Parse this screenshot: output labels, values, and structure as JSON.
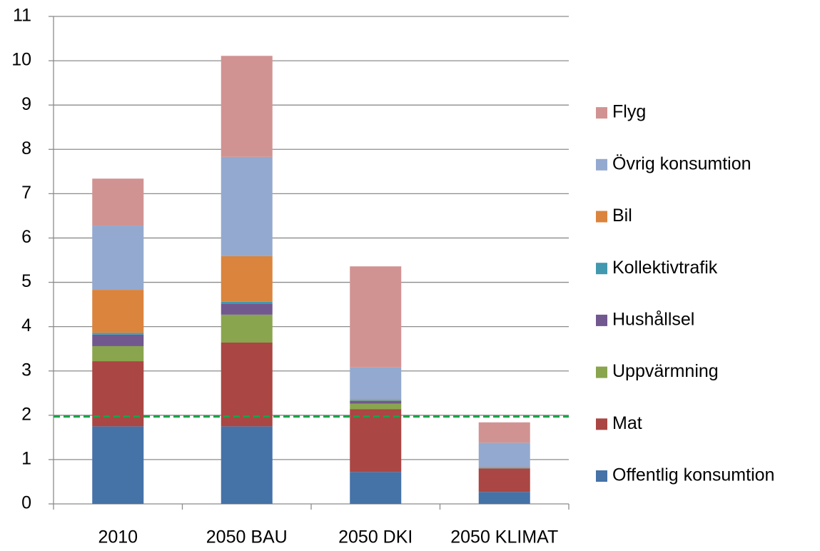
{
  "chart_data": {
    "type": "stacked_bar",
    "categories": [
      "2010",
      "2050 BAU",
      "2050 DKI",
      "2050 KLIMAT"
    ],
    "series": [
      {
        "name": "Offentlig konsumtion",
        "color": "#4572a7",
        "values": [
          1.75,
          1.75,
          0.72,
          0.27
        ]
      },
      {
        "name": "Mat",
        "color": "#aa4643",
        "values": [
          1.47,
          1.89,
          1.42,
          0.53
        ]
      },
      {
        "name": "Uppvärmning",
        "color": "#89a54e",
        "values": [
          0.34,
          0.63,
          0.12,
          0
        ]
      },
      {
        "name": "Hushållsel",
        "color": "#71588f",
        "values": [
          0.26,
          0.25,
          0.06,
          0
        ]
      },
      {
        "name": "Kollektivtrafik",
        "color": "#4198af",
        "values": [
          0.04,
          0.04,
          0.02,
          0.01
        ]
      },
      {
        "name": "Bil",
        "color": "#db843d",
        "values": [
          0.97,
          1.03,
          0.02,
          0.02
        ]
      },
      {
        "name": "Övrig konsumtion",
        "color": "#93a9cf",
        "values": [
          1.45,
          2.24,
          0.72,
          0.55
        ]
      },
      {
        "name": "Flyg",
        "color": "#d19392",
        "values": [
          1.06,
          2.28,
          2.28,
          0.46
        ]
      }
    ],
    "ylim": [
      0,
      11
    ],
    "yticks": [
      0,
      1,
      2,
      3,
      4,
      5,
      6,
      7,
      8,
      9,
      10,
      11
    ],
    "grid": true,
    "reference_line": {
      "value": 1.97,
      "color": "#1aa34a"
    },
    "legend": "right"
  }
}
